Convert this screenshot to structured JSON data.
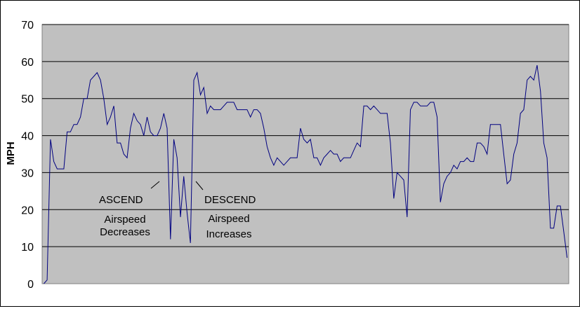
{
  "chart_data": {
    "type": "line",
    "title": "",
    "xlabel": "",
    "ylabel": "MPH",
    "ylim": [
      0,
      70
    ],
    "yticks": [
      0,
      10,
      20,
      30,
      40,
      50,
      60,
      70
    ],
    "grid": true,
    "legend": "none",
    "colors": {
      "plot_bg": "#c0c0c0",
      "line": "#000080",
      "gridline": "#000000"
    },
    "series": [
      {
        "values": [
          0,
          1,
          39,
          33,
          31,
          31,
          31,
          41,
          41,
          43,
          43,
          45,
          50,
          50,
          55,
          56,
          57,
          55,
          50,
          43,
          45,
          48,
          38,
          38,
          35,
          34,
          42,
          46,
          44,
          43,
          40,
          45,
          41,
          40,
          40,
          42,
          46,
          42,
          12,
          39,
          34,
          18,
          29,
          19,
          11,
          55,
          57,
          51,
          53,
          46,
          48,
          47,
          47,
          47,
          48,
          49,
          49,
          49,
          47,
          47,
          47,
          47,
          45,
          47,
          47,
          46,
          42,
          37,
          34,
          32,
          34,
          33,
          32,
          33,
          34,
          34,
          34,
          42,
          39,
          38,
          39,
          34,
          34,
          32,
          34,
          35,
          36,
          35,
          35,
          33,
          34,
          34,
          34,
          36,
          38,
          37,
          48,
          48,
          47,
          48,
          47,
          46,
          46,
          46,
          38,
          23,
          30,
          29,
          28,
          18,
          47,
          49,
          49,
          48,
          48,
          48,
          49,
          49,
          45,
          22,
          27,
          29,
          30,
          32,
          31,
          33,
          33,
          34,
          33,
          33,
          38,
          38,
          37,
          35,
          43,
          43,
          43,
          43,
          35,
          27,
          28,
          35,
          38,
          46,
          47,
          55,
          56,
          55,
          59,
          52,
          38,
          34,
          15,
          15,
          21,
          21,
          14,
          7
        ]
      }
    ],
    "annotations": [
      {
        "id": "ascend",
        "title": "ASCEND",
        "lines": [
          "Airspeed",
          "Decreases"
        ]
      },
      {
        "id": "descend",
        "title": "DESCEND",
        "lines": [
          "Airspeed",
          "Increases"
        ]
      }
    ]
  }
}
